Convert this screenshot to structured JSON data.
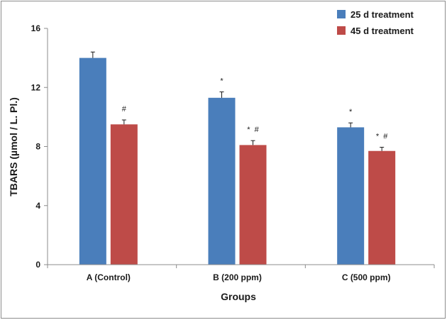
{
  "chart_data": {
    "type": "bar",
    "title": "",
    "xlabel": "Groups",
    "ylabel": "TBARS (µmol / L. Pl.)",
    "ylim": [
      0,
      16
    ],
    "yticks": [
      "0",
      "4",
      "8",
      "12",
      "16"
    ],
    "categories": [
      "A (Control)",
      "B (200 ppm)",
      "C (500 ppm)"
    ],
    "series": [
      {
        "name": "25 d treatment",
        "color": "#4a7ebb",
        "values": [
          14.0,
          11.3,
          9.3
        ],
        "errors": [
          0.4,
          0.4,
          0.3
        ],
        "annotations": [
          "",
          "*",
          "*"
        ]
      },
      {
        "name": "45 d treatment",
        "color": "#be4b48",
        "values": [
          9.5,
          8.1,
          7.7
        ],
        "errors": [
          0.3,
          0.3,
          0.25
        ],
        "annotations": [
          "#",
          "* #",
          "* #"
        ]
      }
    ],
    "legend_position": "top-right",
    "grid": false
  }
}
